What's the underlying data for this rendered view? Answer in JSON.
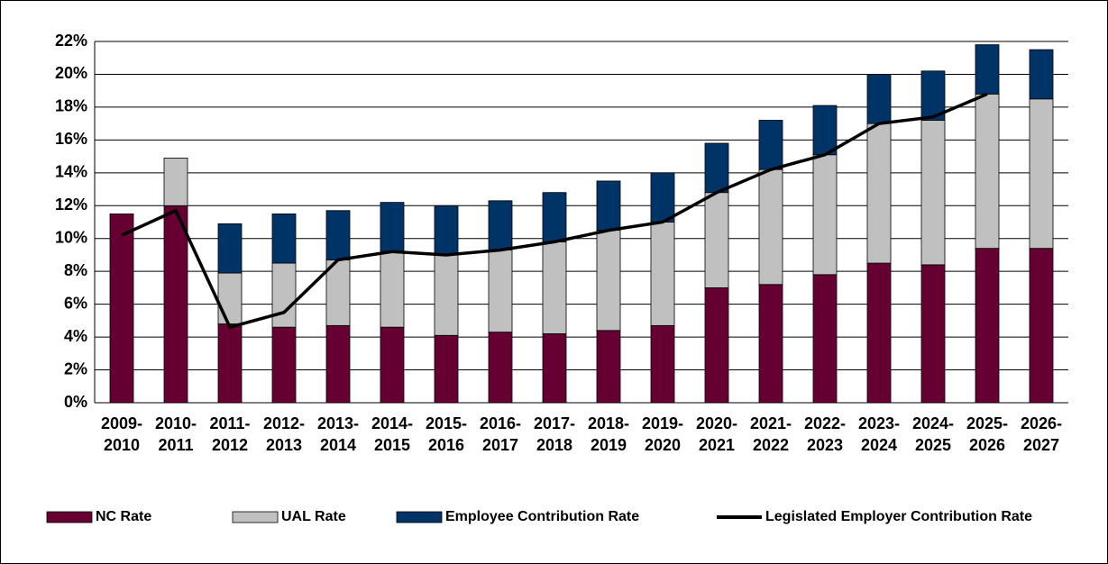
{
  "chart_data": {
    "type": "stacked-bar-line",
    "categories": [
      "2009-2010",
      "2010-2011",
      "2011-2012",
      "2012-2013",
      "2013-2014",
      "2014-2015",
      "2015-2016",
      "2016-2017",
      "2017-2018",
      "2018-2019",
      "2019-2020",
      "2020-2021",
      "2021-2022",
      "2022-2023",
      "2023-2024",
      "2024-2025",
      "2025-2026",
      "2026-2027"
    ],
    "series": [
      {
        "name": "NC Rate",
        "color": "#660033",
        "values": [
          11.5,
          12.0,
          4.8,
          4.6,
          4.7,
          4.6,
          4.1,
          4.3,
          4.2,
          4.4,
          4.7,
          7.0,
          7.2,
          7.8,
          8.5,
          8.4,
          9.4,
          9.4
        ]
      },
      {
        "name": "UAL Rate",
        "color": "#c0c0c0",
        "values": [
          0,
          2.9,
          3.1,
          3.9,
          4.0,
          4.6,
          4.9,
          5.0,
          5.6,
          6.1,
          6.3,
          5.8,
          7.0,
          7.3,
          8.5,
          8.8,
          9.4,
          9.1
        ]
      },
      {
        "name": "Employee Contribution Rate",
        "color": "#003366",
        "values": [
          0,
          0,
          3.0,
          3.0,
          3.0,
          3.0,
          3.0,
          3.0,
          3.0,
          3.0,
          3.0,
          3.0,
          3.0,
          3.0,
          3.0,
          3.0,
          3.0,
          3.0
        ]
      },
      {
        "name": "Legislated Employer Contribution Rate",
        "color": "#000000",
        "type": "line",
        "values": [
          10.2,
          11.7,
          4.6,
          5.5,
          8.7,
          9.2,
          9.0,
          9.3,
          9.8,
          10.5,
          11.0,
          12.8,
          14.2,
          15.1,
          17.0,
          17.4,
          18.8,
          null
        ]
      }
    ],
    "ylim": [
      0,
      22
    ],
    "yticks": [
      {
        "value": 0,
        "label": "0%"
      },
      {
        "value": 2,
        "label": "2%"
      },
      {
        "value": 4,
        "label": "4%"
      },
      {
        "value": 6,
        "label": "6%"
      },
      {
        "value": 8,
        "label": "8%"
      },
      {
        "value": 10,
        "label": "10%"
      },
      {
        "value": 12,
        "label": "12%"
      },
      {
        "value": 14,
        "label": "14%"
      },
      {
        "value": 16,
        "label": "16%"
      },
      {
        "value": 18,
        "label": "18%"
      },
      {
        "value": 20,
        "label": "20%"
      },
      {
        "value": 22,
        "label": "22%"
      }
    ],
    "grid": true,
    "legend": "bottom"
  }
}
